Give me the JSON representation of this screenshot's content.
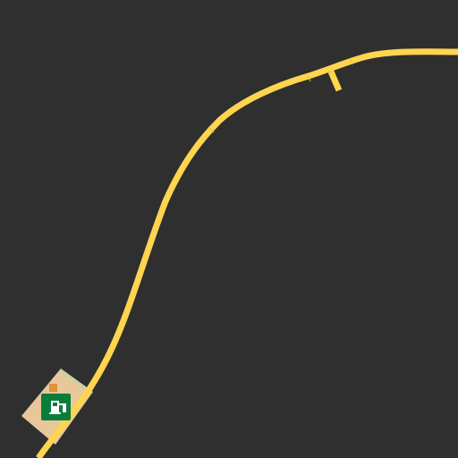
{
  "map": {
    "background_color": "#2f2f2f",
    "road": {
      "kind": "primary-road",
      "color": "#ffd54f"
    },
    "poi": {
      "type": "fuel-station",
      "icon": "gas-pump-icon",
      "icon_color": "#0b7d3b",
      "area_color": "#e8c89a",
      "accent_color": "#e0913a"
    }
  }
}
